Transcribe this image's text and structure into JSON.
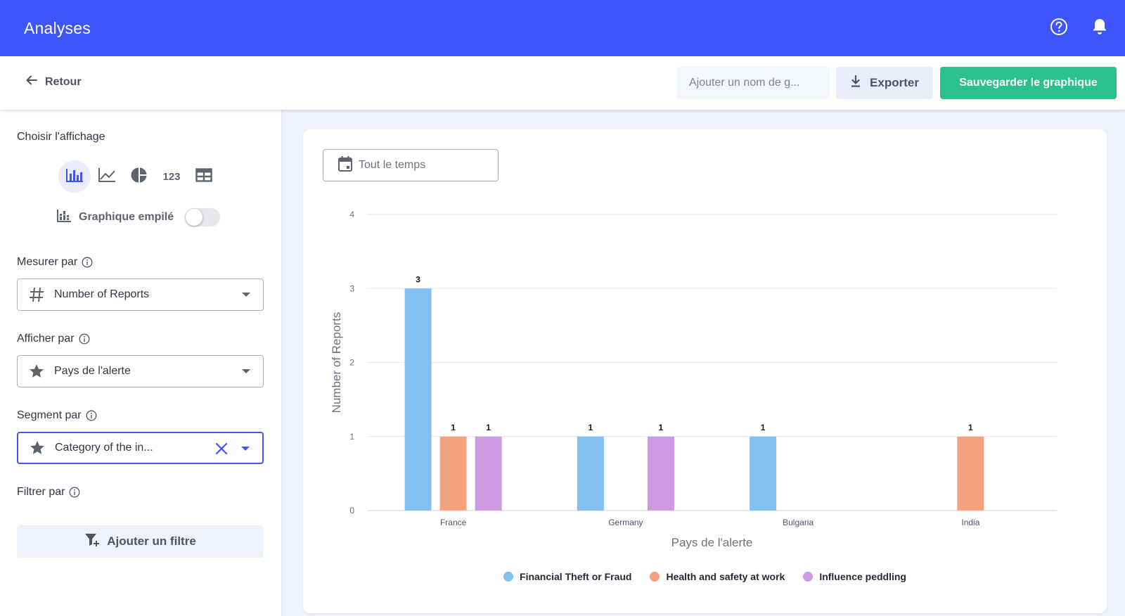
{
  "header": {
    "title": "Analyses"
  },
  "toolbar": {
    "back_label": "Retour",
    "name_placeholder": "Ajouter un nom de g...",
    "export_label": "Exporter",
    "save_label": "Sauvegarder le graphique"
  },
  "sidebar": {
    "display_label": "Choisir l'affichage",
    "view_options": [
      "bar-chart",
      "line-chart",
      "pie-chart",
      "123",
      "table"
    ],
    "view_number_label": "123",
    "stacked_label": "Graphique empilé",
    "stacked_enabled": false,
    "measure_label": "Mesurer par",
    "measure_value": "Number of Reports",
    "display_by_label": "Afficher par",
    "display_by_value": "Pays de l'alerte",
    "segment_label": "Segment par",
    "segment_value": "Category of the in...",
    "filter_label": "Filtrer par",
    "add_filter_label": "Ajouter un filtre"
  },
  "date_filter": {
    "value": "Tout le temps"
  },
  "colors": {
    "brand": "#3d55fb",
    "save": "#2ac18e"
  },
  "chart_data": {
    "type": "bar",
    "categories": [
      "France",
      "Germany",
      "Bulgaria",
      "India"
    ],
    "series": [
      {
        "name": "Financial Theft or Fraud",
        "color": "#82c0f0",
        "values": [
          3,
          1,
          1,
          0
        ]
      },
      {
        "name": "Health and safety at work",
        "color": "#f5a27e",
        "values": [
          1,
          0,
          0,
          1
        ]
      },
      {
        "name": "Influence peddling",
        "color": "#cc99e2",
        "values": [
          1,
          1,
          0,
          0
        ]
      }
    ],
    "xlabel": "Pays de l'alerte",
    "ylabel": "Number of Reports",
    "ylim": [
      0,
      4
    ],
    "yticks": [
      0,
      1,
      2,
      3,
      4
    ],
    "grid": true,
    "data_labels": true,
    "legend_position": "bottom"
  }
}
